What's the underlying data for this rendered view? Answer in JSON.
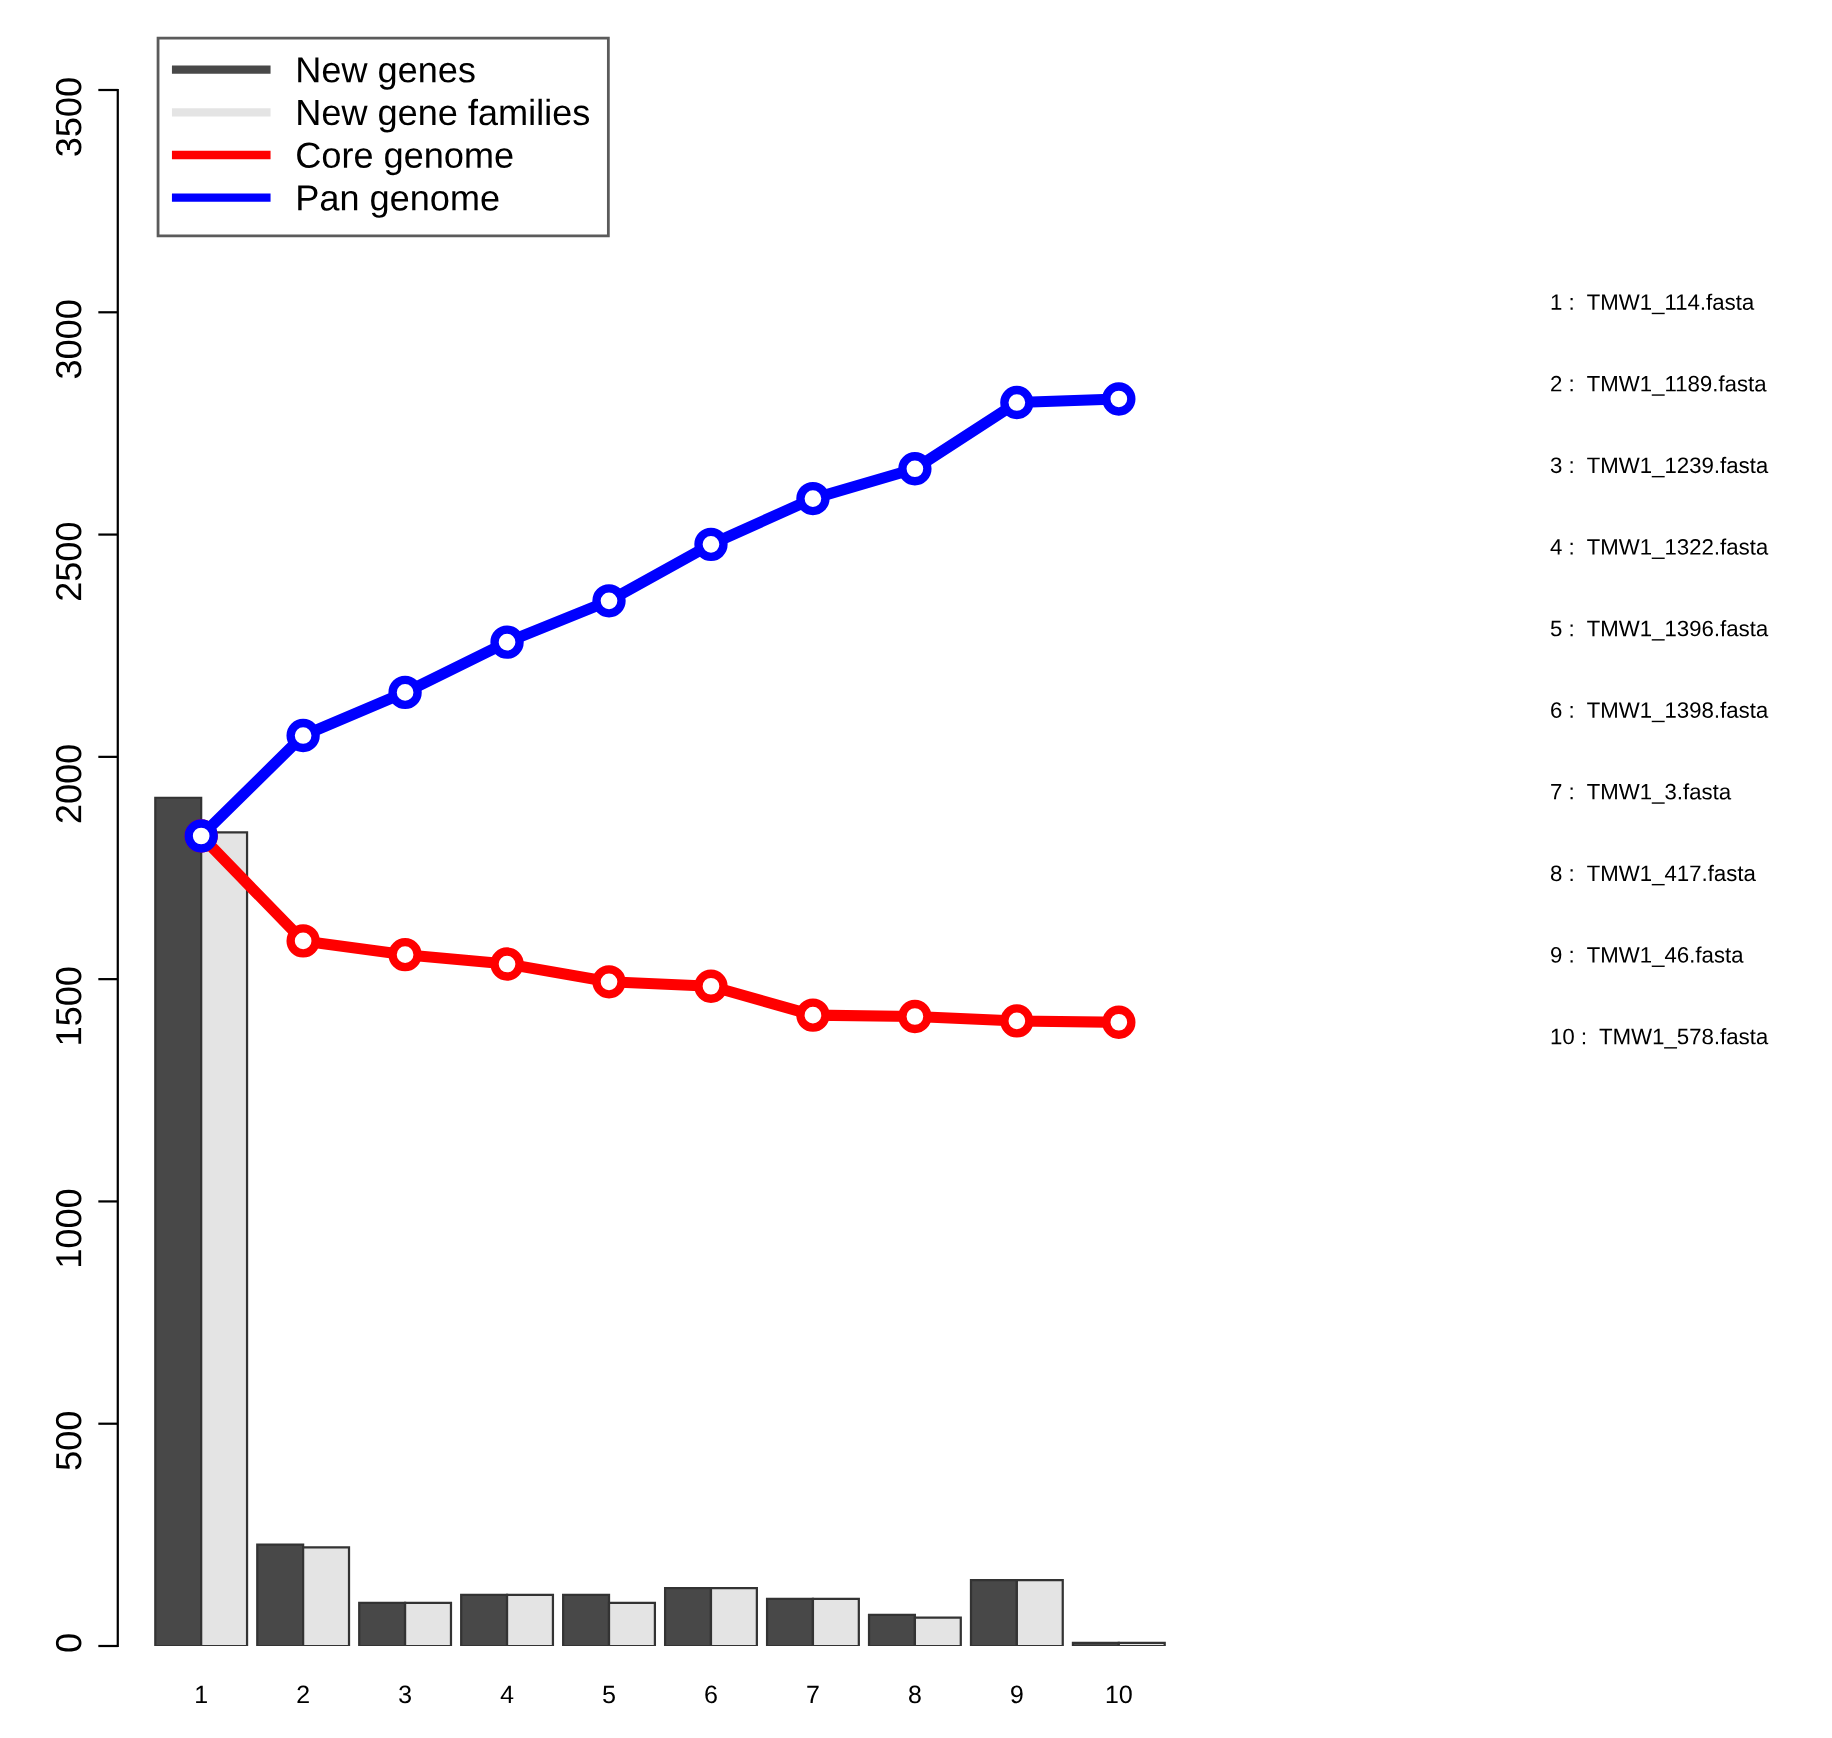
{
  "chart_data": {
    "type": "bar",
    "categories": [
      "1",
      "2",
      "3",
      "4",
      "5",
      "6",
      "7",
      "8",
      "9",
      "10"
    ],
    "series": [
      {
        "name": "New genes",
        "color": "#484848",
        "values": [
          1908,
          228,
          97,
          115,
          115,
          130,
          106,
          70,
          148,
          7
        ]
      },
      {
        "name": "New gene families",
        "color": "#e4e4e4",
        "values": [
          1830,
          222,
          97,
          115,
          97,
          130,
          106,
          64,
          148,
          7
        ]
      },
      {
        "name": "Core genome",
        "type": "line",
        "color": "#ff0000",
        "values": [
          1822,
          1586,
          1555,
          1534,
          1494,
          1484,
          1419,
          1416,
          1406,
          1403
        ]
      },
      {
        "name": "Pan genome",
        "type": "line",
        "color": "#0000ff",
        "values": [
          1822,
          2048,
          2145,
          2258,
          2351,
          2478,
          2581,
          2648,
          2797,
          2805
        ]
      }
    ],
    "ylim": [
      0,
      3500
    ],
    "yticks": [
      0,
      500,
      1000,
      1500,
      2000,
      2500,
      3000,
      3500
    ],
    "marker": "circle",
    "line_style": "solid",
    "grid": false,
    "legend": "top left",
    "annotations": [
      "1 :  TMW1_114.fasta",
      "2 :  TMW1_1189.fasta",
      "3 :  TMW1_1239.fasta",
      "4 :  TMW1_1322.fasta",
      "5 :  TMW1_1396.fasta",
      "6 :  TMW1_1398.fasta",
      "7 :  TMW1_3.fasta",
      "8 :  TMW1_417.fasta",
      "9 :  TMW1_46.fasta",
      "10 :  TMW1_578.fasta"
    ]
  }
}
